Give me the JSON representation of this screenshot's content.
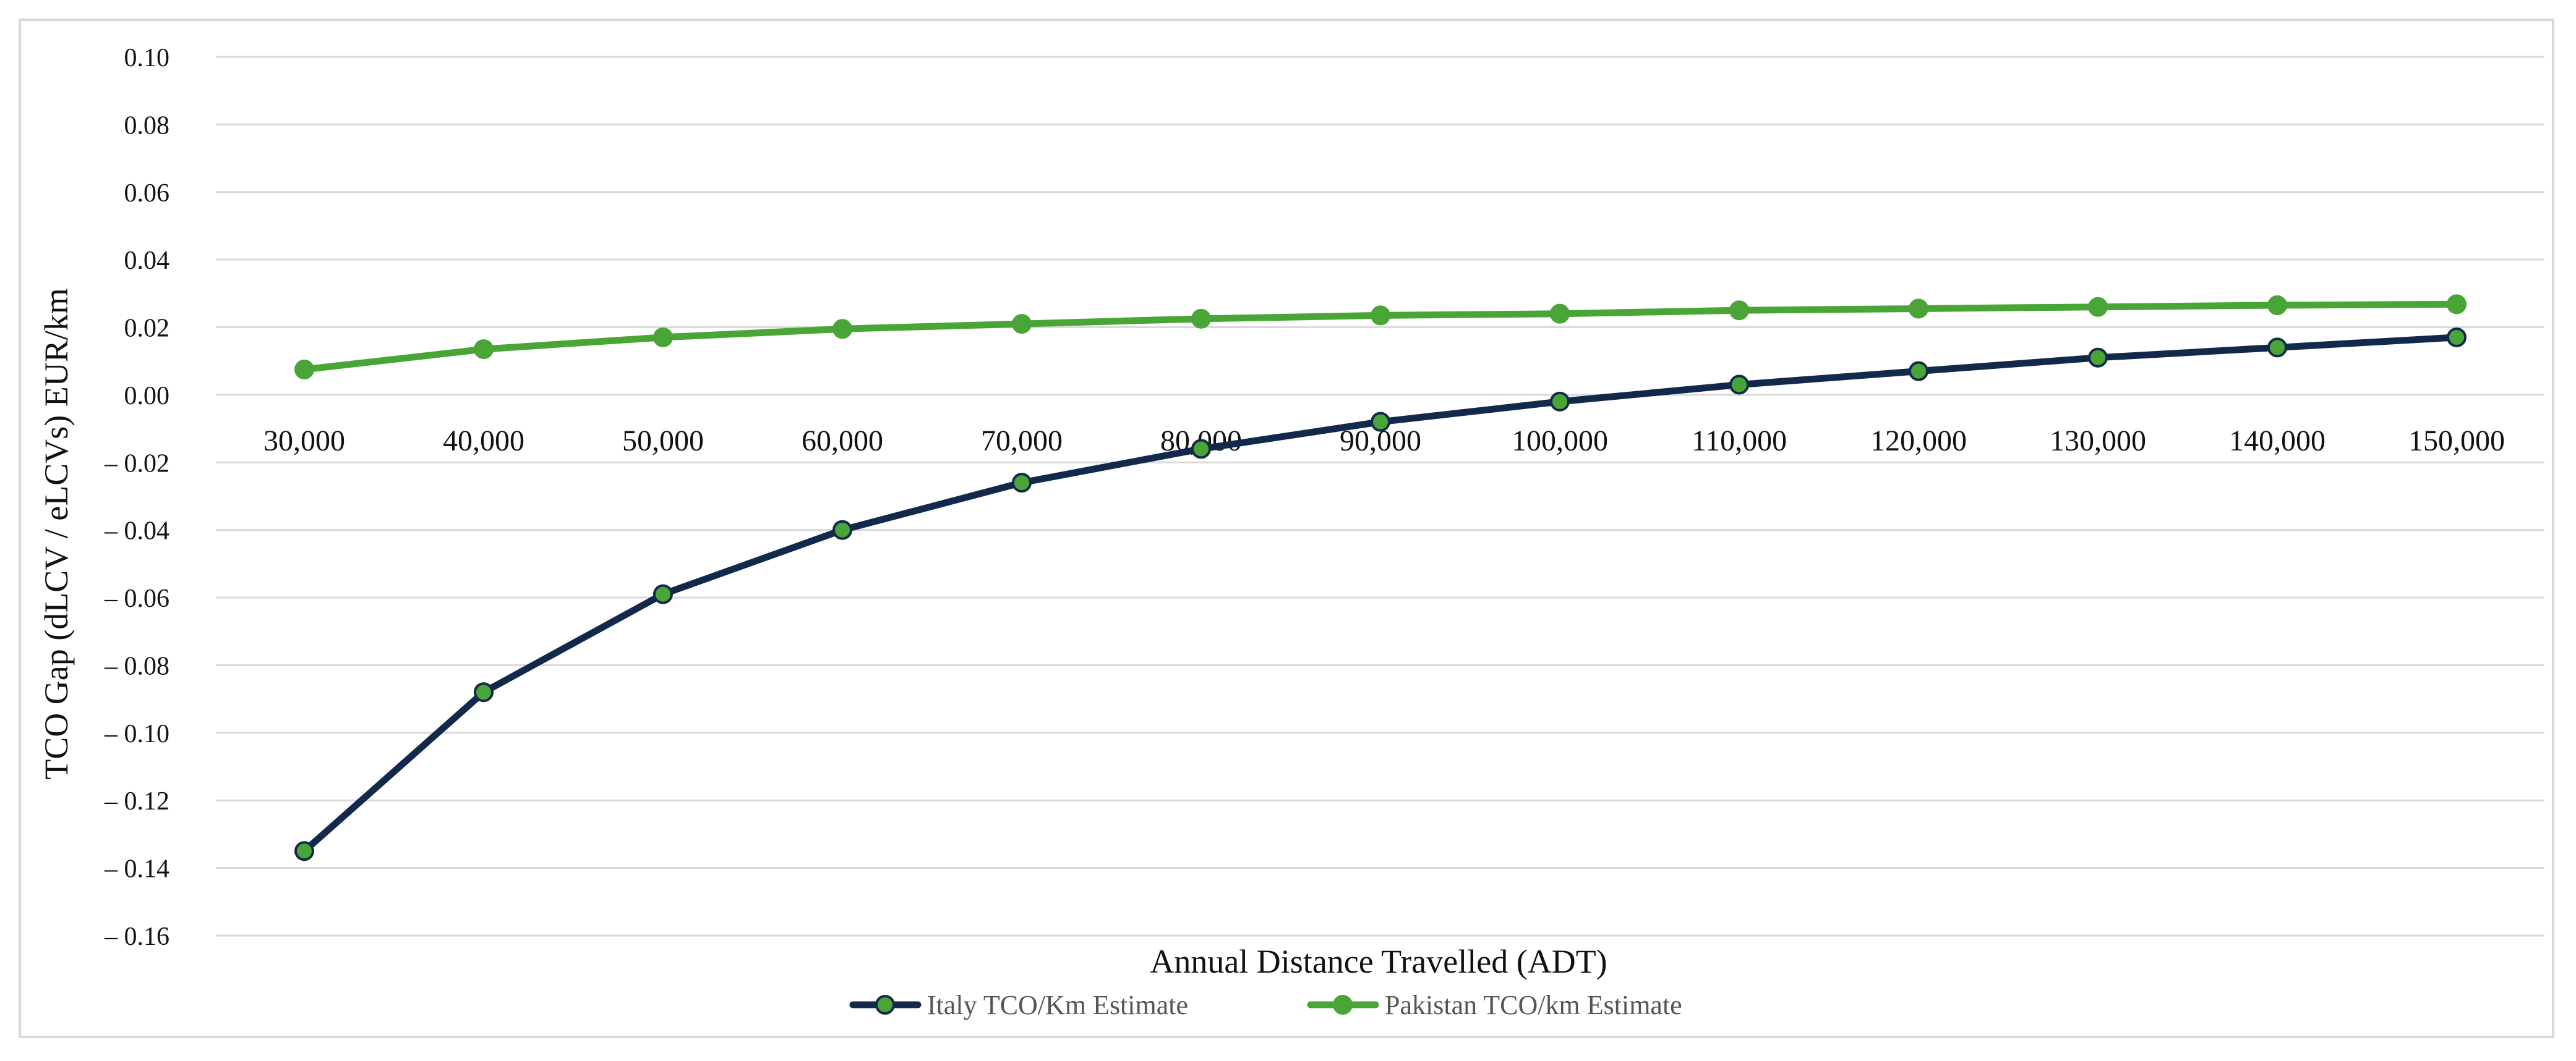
{
  "chart_data": {
    "type": "line",
    "title": "",
    "xlabel": "Annual Distance Travelled (ADT)",
    "ylabel": "TCO Gap (dLCV / eLCVs)  EUR/km",
    "categories": [
      "30,000",
      "40,000",
      "50,000",
      "60,000",
      "70,000",
      "80,000",
      "90,000",
      "100,000",
      "110,000",
      "120,000",
      "130,000",
      "140,000",
      "150,000"
    ],
    "x": [
      30000,
      40000,
      50000,
      60000,
      70000,
      80000,
      90000,
      100000,
      110000,
      120000,
      130000,
      140000,
      150000
    ],
    "ylim": [
      -0.16,
      0.1
    ],
    "yticks": [
      "0.10",
      "0.08",
      "0.06",
      "0.04",
      "0.02",
      "0.00",
      "– 0.02",
      "– 0.04",
      "– 0.06",
      "– 0.08",
      "– 0.10",
      "– 0.12",
      "– 0.14",
      "– 0.16"
    ],
    "ytick_values": [
      0.1,
      0.08,
      0.06,
      0.04,
      0.02,
      0.0,
      -0.02,
      -0.04,
      -0.06,
      -0.08,
      -0.1,
      -0.12,
      -0.14,
      -0.16
    ],
    "grid": true,
    "legend_position": "bottom",
    "series": [
      {
        "name": "Italy TCO/Km Estimate",
        "color": "#13294b",
        "marker_color": "#4aa537",
        "values": [
          -0.135,
          -0.088,
          -0.059,
          -0.04,
          -0.026,
          -0.016,
          -0.008,
          -0.002,
          0.003,
          0.007,
          0.011,
          0.014,
          0.017
        ]
      },
      {
        "name": "Pakistan TCO/km Estimate",
        "color": "#4aa537",
        "marker_color": "#4aa537",
        "values": [
          0.0075,
          0.0135,
          0.017,
          0.0195,
          0.021,
          0.0225,
          0.0235,
          0.024,
          0.025,
          0.0255,
          0.026,
          0.0265,
          0.0268
        ]
      }
    ]
  }
}
